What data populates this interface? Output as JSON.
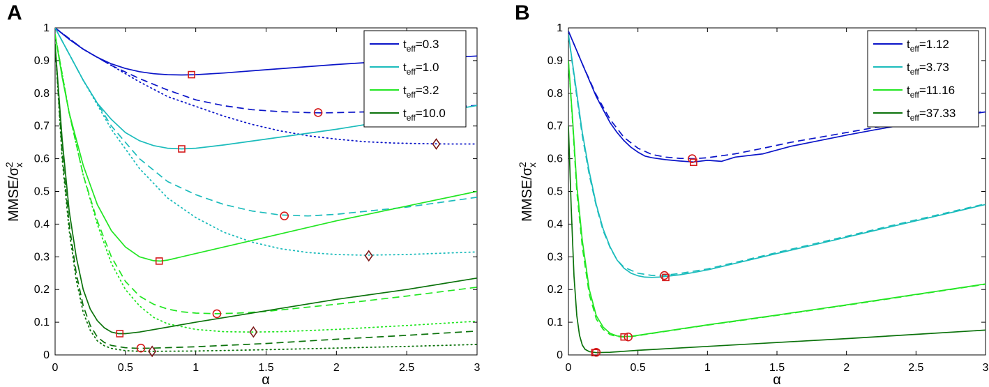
{
  "figure": {
    "panels": [
      "A",
      "B"
    ]
  },
  "chart_data": [
    {
      "type": "line",
      "panel": "A",
      "xlabel": "α",
      "ylabel": "MMSE/σ",
      "ylabel_sup": "2",
      "ylabel_sub": "x",
      "xlim": [
        0,
        3
      ],
      "ylim": [
        0,
        1
      ],
      "xticks": [
        0,
        0.5,
        1,
        1.5,
        2,
        2.5,
        3
      ],
      "xtick_labels": [
        "0",
        "0.5",
        "1",
        "1.5",
        "2",
        "2.5",
        "3"
      ],
      "yticks": [
        0,
        0.1,
        0.2,
        0.3,
        0.4,
        0.5,
        0.6,
        0.7,
        0.8,
        0.9,
        1
      ],
      "ytick_labels": [
        "0",
        "0.1",
        "0.2",
        "0.3",
        "0.4",
        "0.5",
        "0.6",
        "0.7",
        "0.8",
        "0.9",
        "1"
      ],
      "legend_location": "top-right",
      "legend": [
        {
          "base": "t",
          "sub": "eff",
          "value": "=0.3",
          "color": "#0a14c8"
        },
        {
          "base": "t",
          "sub": "eff",
          "value": "=1.0",
          "color": "#1cbcbc"
        },
        {
          "base": "t",
          "sub": "eff",
          "value": "=3.2",
          "color": "#22e622"
        },
        {
          "base": "t",
          "sub": "eff",
          "value": "=10.0",
          "color": "#0b720b"
        }
      ],
      "series": [
        {
          "name": "t_eff=0.3 solid",
          "color": "#0a14c8",
          "style": "solid",
          "x": [
            0,
            0.1,
            0.2,
            0.3,
            0.4,
            0.5,
            0.6,
            0.7,
            0.8,
            0.9,
            1.0,
            1.2,
            1.5,
            2.0,
            2.5,
            3.0
          ],
          "y": [
            1.0,
            0.965,
            0.935,
            0.91,
            0.89,
            0.876,
            0.866,
            0.86,
            0.857,
            0.856,
            0.857,
            0.862,
            0.872,
            0.888,
            0.902,
            0.914
          ]
        },
        {
          "name": "t_eff=0.3 dashed",
          "color": "#0a14c8",
          "style": "dashed",
          "x": [
            0,
            0.2,
            0.4,
            0.6,
            0.8,
            1.0,
            1.2,
            1.4,
            1.6,
            1.8,
            1.9,
            2.0,
            2.2,
            2.5,
            3.0
          ],
          "y": [
            1.0,
            0.935,
            0.885,
            0.845,
            0.81,
            0.78,
            0.762,
            0.75,
            0.744,
            0.741,
            0.74,
            0.741,
            0.743,
            0.75,
            0.763
          ]
        },
        {
          "name": "t_eff=0.3 dotted",
          "color": "#0a14c8",
          "style": "dotted",
          "x": [
            0,
            0.2,
            0.4,
            0.6,
            0.8,
            1.0,
            1.2,
            1.4,
            1.6,
            1.8,
            2.0,
            2.2,
            2.4,
            2.6,
            2.8,
            3.0
          ],
          "y": [
            1.0,
            0.935,
            0.885,
            0.835,
            0.79,
            0.76,
            0.73,
            0.705,
            0.685,
            0.67,
            0.66,
            0.652,
            0.648,
            0.646,
            0.645,
            0.645
          ]
        },
        {
          "name": "t_eff=1.0 solid",
          "color": "#1cbcbc",
          "style": "solid",
          "x": [
            0,
            0.1,
            0.2,
            0.3,
            0.4,
            0.5,
            0.6,
            0.7,
            0.8,
            0.9,
            1.0,
            1.2,
            1.5,
            2.0,
            2.5,
            3.0
          ],
          "y": [
            1.0,
            0.92,
            0.84,
            0.77,
            0.72,
            0.68,
            0.655,
            0.64,
            0.632,
            0.63,
            0.632,
            0.642,
            0.66,
            0.69,
            0.725,
            0.763
          ]
        },
        {
          "name": "t_eff=1.0 dashed",
          "color": "#1cbcbc",
          "style": "dashed",
          "x": [
            0,
            0.2,
            0.4,
            0.6,
            0.8,
            1.0,
            1.2,
            1.4,
            1.6,
            1.8,
            2.0,
            2.5,
            3.0
          ],
          "y": [
            1.0,
            0.84,
            0.7,
            0.6,
            0.53,
            0.49,
            0.46,
            0.44,
            0.428,
            0.425,
            0.43,
            0.452,
            0.482
          ]
        },
        {
          "name": "t_eff=1.0 dotted",
          "color": "#1cbcbc",
          "style": "dotted",
          "x": [
            0,
            0.2,
            0.4,
            0.6,
            0.8,
            1.0,
            1.2,
            1.4,
            1.6,
            1.8,
            2.0,
            2.2,
            2.5,
            3.0
          ],
          "y": [
            1.0,
            0.84,
            0.69,
            0.57,
            0.48,
            0.42,
            0.375,
            0.345,
            0.325,
            0.313,
            0.307,
            0.305,
            0.307,
            0.315
          ]
        },
        {
          "name": "t_eff=3.2 solid",
          "color": "#22e622",
          "style": "solid",
          "x": [
            0,
            0.05,
            0.1,
            0.2,
            0.3,
            0.4,
            0.5,
            0.6,
            0.7,
            0.75,
            0.8,
            1.0,
            1.5,
            2.0,
            2.5,
            3.0
          ],
          "y": [
            0.98,
            0.85,
            0.74,
            0.58,
            0.46,
            0.38,
            0.33,
            0.3,
            0.288,
            0.287,
            0.29,
            0.31,
            0.36,
            0.41,
            0.455,
            0.5
          ]
        },
        {
          "name": "t_eff=3.2 dashed",
          "color": "#22e622",
          "style": "dashed",
          "x": [
            0,
            0.1,
            0.2,
            0.3,
            0.4,
            0.5,
            0.6,
            0.7,
            0.8,
            0.9,
            1.0,
            1.15,
            1.3,
            1.5,
            2.0,
            2.5,
            3.0
          ],
          "y": [
            0.98,
            0.74,
            0.55,
            0.41,
            0.3,
            0.225,
            0.18,
            0.155,
            0.14,
            0.132,
            0.128,
            0.126,
            0.128,
            0.133,
            0.155,
            0.18,
            0.207
          ]
        },
        {
          "name": "t_eff=3.2 dotted",
          "color": "#22e622",
          "style": "dotted",
          "x": [
            0,
            0.1,
            0.2,
            0.3,
            0.4,
            0.5,
            0.6,
            0.7,
            0.8,
            1.0,
            1.2,
            1.4,
            1.6,
            2.0,
            2.5,
            3.0
          ],
          "y": [
            0.98,
            0.74,
            0.55,
            0.4,
            0.28,
            0.2,
            0.15,
            0.115,
            0.095,
            0.078,
            0.071,
            0.07,
            0.071,
            0.078,
            0.09,
            0.103
          ]
        },
        {
          "name": "t_eff=10.0 solid",
          "color": "#0b720b",
          "style": "solid",
          "x": [
            0,
            0.05,
            0.1,
            0.15,
            0.2,
            0.25,
            0.3,
            0.35,
            0.4,
            0.45,
            0.5,
            0.6,
            1.0,
            1.5,
            2.0,
            2.5,
            3.0
          ],
          "y": [
            0.95,
            0.66,
            0.44,
            0.3,
            0.2,
            0.14,
            0.105,
            0.083,
            0.07,
            0.065,
            0.065,
            0.07,
            0.1,
            0.135,
            0.17,
            0.2,
            0.235
          ]
        },
        {
          "name": "t_eff=10.0 dashed",
          "color": "#0b720b",
          "style": "dashed",
          "x": [
            0,
            0.05,
            0.1,
            0.15,
            0.2,
            0.25,
            0.3,
            0.35,
            0.4,
            0.5,
            0.6,
            0.7,
            1.0,
            1.5,
            2.0,
            2.5,
            3.0
          ],
          "y": [
            0.95,
            0.62,
            0.4,
            0.25,
            0.15,
            0.09,
            0.055,
            0.038,
            0.029,
            0.022,
            0.02,
            0.021,
            0.025,
            0.035,
            0.048,
            0.06,
            0.073
          ]
        },
        {
          "name": "t_eff=10.0 dotted",
          "color": "#0b720b",
          "style": "dotted",
          "x": [
            0,
            0.05,
            0.1,
            0.15,
            0.2,
            0.25,
            0.3,
            0.35,
            0.4,
            0.5,
            0.6,
            0.7,
            1.0,
            1.5,
            2.0,
            2.5,
            3.0
          ],
          "y": [
            0.95,
            0.6,
            0.38,
            0.23,
            0.13,
            0.075,
            0.043,
            0.028,
            0.02,
            0.013,
            0.011,
            0.011,
            0.012,
            0.016,
            0.021,
            0.026,
            0.032
          ]
        }
      ],
      "markers": [
        {
          "shape": "square",
          "x": 0.97,
          "y": 0.857
        },
        {
          "shape": "circle",
          "x": 1.87,
          "y": 0.741
        },
        {
          "shape": "diamond",
          "x": 2.71,
          "y": 0.645
        },
        {
          "shape": "square",
          "x": 0.9,
          "y": 0.63
        },
        {
          "shape": "circle",
          "x": 1.63,
          "y": 0.425
        },
        {
          "shape": "diamond",
          "x": 2.23,
          "y": 0.303
        },
        {
          "shape": "square",
          "x": 0.74,
          "y": 0.287
        },
        {
          "shape": "circle",
          "x": 1.15,
          "y": 0.126
        },
        {
          "shape": "diamond",
          "x": 1.41,
          "y": 0.07
        },
        {
          "shape": "square",
          "x": 0.46,
          "y": 0.065
        },
        {
          "shape": "circle",
          "x": 0.61,
          "y": 0.021
        },
        {
          "shape": "diamond",
          "x": 0.69,
          "y": 0.011
        }
      ]
    },
    {
      "type": "line",
      "panel": "B",
      "xlabel": "α",
      "ylabel": "MMSE/σ",
      "ylabel_sup": "2",
      "ylabel_sub": "x",
      "xlim": [
        0,
        3
      ],
      "ylim": [
        0,
        1
      ],
      "xticks": [
        0,
        0.5,
        1,
        1.5,
        2,
        2.5,
        3
      ],
      "xtick_labels": [
        "0",
        "0.5",
        "1",
        "1.5",
        "2",
        "2.5",
        "3"
      ],
      "yticks": [
        0,
        0.1,
        0.2,
        0.3,
        0.4,
        0.5,
        0.6,
        0.7,
        0.8,
        0.9,
        1
      ],
      "ytick_labels": [
        "0",
        "0.1",
        "0.2",
        "0.3",
        "0.4",
        "0.5",
        "0.6",
        "0.7",
        "0.8",
        "0.9",
        "1"
      ],
      "legend_location": "top-right",
      "legend": [
        {
          "base": "t",
          "sub": "eff",
          "value": "=1.12",
          "color": "#0a14c8"
        },
        {
          "base": "t",
          "sub": "eff",
          "value": "=3.73",
          "color": "#1cbcbc"
        },
        {
          "base": "t",
          "sub": "eff",
          "value": "=11.16",
          "color": "#22e622"
        },
        {
          "base": "t",
          "sub": "eff",
          "value": "=37.33",
          "color": "#0b720b"
        }
      ],
      "series": [
        {
          "name": "t_eff=1.12 solid",
          "color": "#0a14c8",
          "style": "solid",
          "x": [
            0,
            0.05,
            0.1,
            0.15,
            0.2,
            0.25,
            0.3,
            0.35,
            0.4,
            0.45,
            0.5,
            0.55,
            0.6,
            0.7,
            0.8,
            0.9,
            1.0,
            1.1,
            1.2,
            1.4,
            1.6,
            1.8,
            2.0,
            2.2,
            2.4,
            2.6,
            2.8,
            3.0
          ],
          "y": [
            0.99,
            0.94,
            0.89,
            0.84,
            0.79,
            0.75,
            0.71,
            0.68,
            0.655,
            0.635,
            0.62,
            0.608,
            0.603,
            0.597,
            0.593,
            0.59,
            0.595,
            0.592,
            0.605,
            0.615,
            0.638,
            0.655,
            0.672,
            0.688,
            0.703,
            0.718,
            0.73,
            0.743
          ]
        },
        {
          "name": "t_eff=1.12 dashed",
          "color": "#0a14c8",
          "style": "dashed",
          "x": [
            0,
            0.05,
            0.1,
            0.2,
            0.3,
            0.4,
            0.5,
            0.6,
            0.7,
            0.8,
            0.9,
            1.0,
            1.2,
            1.4,
            1.6,
            1.8,
            2.0,
            2.2,
            2.4,
            2.6,
            2.8,
            3.0
          ],
          "y": [
            0.99,
            0.94,
            0.89,
            0.795,
            0.72,
            0.665,
            0.632,
            0.613,
            0.605,
            0.601,
            0.6,
            0.603,
            0.615,
            0.632,
            0.65,
            0.665,
            0.68,
            0.695,
            0.708,
            0.72,
            0.732,
            0.745
          ]
        },
        {
          "name": "t_eff=3.73 solid",
          "color": "#1cbcbc",
          "style": "solid",
          "x": [
            0,
            0.05,
            0.1,
            0.15,
            0.2,
            0.25,
            0.3,
            0.35,
            0.4,
            0.45,
            0.5,
            0.55,
            0.6,
            0.65,
            0.7,
            0.8,
            0.9,
            1.0,
            1.2,
            1.5,
            2.0,
            2.5,
            3.0
          ],
          "y": [
            0.98,
            0.83,
            0.68,
            0.56,
            0.46,
            0.385,
            0.33,
            0.29,
            0.265,
            0.25,
            0.242,
            0.238,
            0.237,
            0.238,
            0.24,
            0.245,
            0.252,
            0.26,
            0.28,
            0.31,
            0.36,
            0.41,
            0.46
          ]
        },
        {
          "name": "t_eff=3.73 dashed",
          "color": "#1cbcbc",
          "style": "dashed",
          "x": [
            0,
            0.05,
            0.1,
            0.15,
            0.2,
            0.25,
            0.3,
            0.35,
            0.4,
            0.5,
            0.6,
            0.7,
            0.8,
            1.0,
            1.5,
            2.0,
            2.5,
            3.0
          ],
          "y": [
            0.98,
            0.82,
            0.67,
            0.55,
            0.455,
            0.38,
            0.328,
            0.29,
            0.268,
            0.25,
            0.243,
            0.244,
            0.249,
            0.263,
            0.313,
            0.363,
            0.413,
            0.462
          ]
        },
        {
          "name": "t_eff=11.16 solid",
          "color": "#22e622",
          "style": "solid",
          "x": [
            0,
            0.03,
            0.06,
            0.1,
            0.15,
            0.2,
            0.25,
            0.3,
            0.35,
            0.4,
            0.45,
            0.5,
            0.7,
            1.0,
            1.5,
            2.0,
            2.5,
            3.0
          ],
          "y": [
            0.9,
            0.72,
            0.52,
            0.35,
            0.2,
            0.12,
            0.085,
            0.066,
            0.058,
            0.056,
            0.057,
            0.06,
            0.073,
            0.092,
            0.122,
            0.153,
            0.185,
            0.217
          ]
        },
        {
          "name": "t_eff=11.16 dashed",
          "color": "#22e622",
          "style": "dashed",
          "x": [
            0,
            0.03,
            0.06,
            0.1,
            0.15,
            0.2,
            0.25,
            0.3,
            0.35,
            0.4,
            0.45,
            0.5,
            0.7,
            1.0,
            1.5,
            2.0,
            2.5,
            3.0
          ],
          "y": [
            0.9,
            0.71,
            0.5,
            0.33,
            0.185,
            0.11,
            0.078,
            0.062,
            0.056,
            0.055,
            0.056,
            0.059,
            0.072,
            0.091,
            0.121,
            0.152,
            0.184,
            0.216
          ]
        },
        {
          "name": "t_eff=37.33 solid",
          "color": "#0b720b",
          "style": "solid",
          "x": [
            0,
            0.02,
            0.04,
            0.06,
            0.08,
            0.1,
            0.12,
            0.15,
            0.2,
            0.3,
            0.5,
            1.0,
            1.5,
            2.0,
            2.5,
            3.0
          ],
          "y": [
            0.7,
            0.45,
            0.24,
            0.12,
            0.06,
            0.03,
            0.017,
            0.01,
            0.007,
            0.008,
            0.014,
            0.026,
            0.038,
            0.05,
            0.063,
            0.076
          ]
        }
      ],
      "markers": [
        {
          "shape": "circle",
          "x": 0.89,
          "y": 0.6
        },
        {
          "shape": "square",
          "x": 0.9,
          "y": 0.589
        },
        {
          "shape": "circle",
          "x": 0.69,
          "y": 0.243
        },
        {
          "shape": "square",
          "x": 0.7,
          "y": 0.237
        },
        {
          "shape": "square",
          "x": 0.4,
          "y": 0.055
        },
        {
          "shape": "circle",
          "x": 0.43,
          "y": 0.055
        },
        {
          "shape": "square",
          "x": 0.19,
          "y": 0.007
        },
        {
          "shape": "circle",
          "x": 0.2,
          "y": 0.008
        }
      ]
    }
  ]
}
